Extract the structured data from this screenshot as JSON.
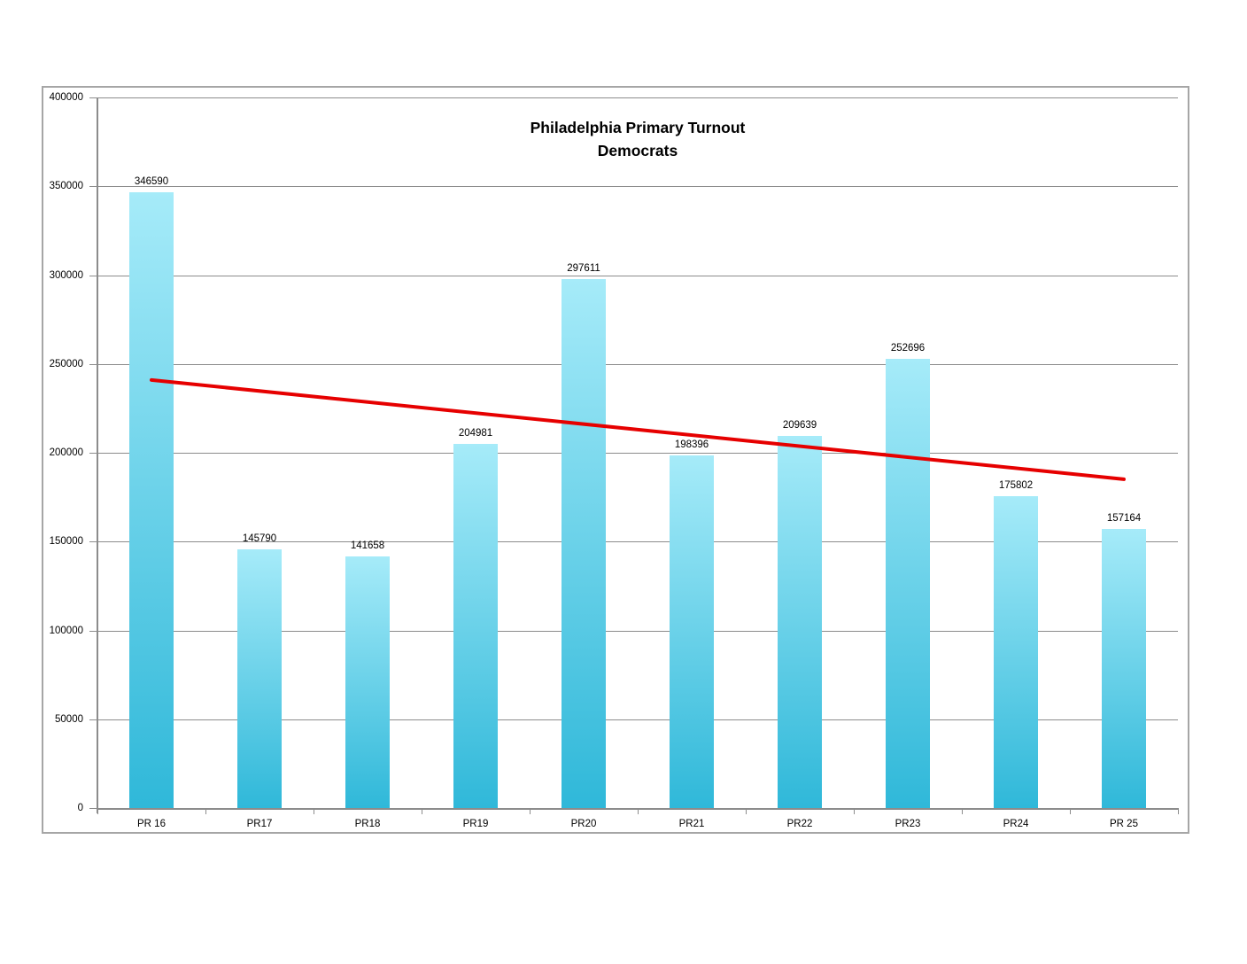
{
  "chart_data": {
    "type": "bar",
    "title": "Philadelphia Primary Turnout",
    "subtitle": "Democrats",
    "categories": [
      "PR 16",
      "PR17",
      "PR18",
      "PR19",
      "PR20",
      "PR21",
      "PR22",
      "PR23",
      "PR24",
      "PR 25"
    ],
    "values": [
      346590,
      145790,
      141658,
      204981,
      297611,
      198396,
      209639,
      252696,
      175802,
      157164
    ],
    "xlabel": "",
    "ylabel": "",
    "ylim": [
      0,
      400000
    ],
    "ytick_interval": 50000,
    "ytick_labels": [
      "0",
      "50000",
      "100000",
      "150000",
      "200000",
      "250000",
      "300000",
      "350000",
      "400000"
    ],
    "grid": true,
    "legend": "none",
    "bar_color_top": "#a6ebf9",
    "bar_color_bottom": "#2fb8d9",
    "trendline": {
      "type": "linear",
      "color": "#e60000",
      "start_value": 240982,
      "end_value": 185083
    }
  }
}
